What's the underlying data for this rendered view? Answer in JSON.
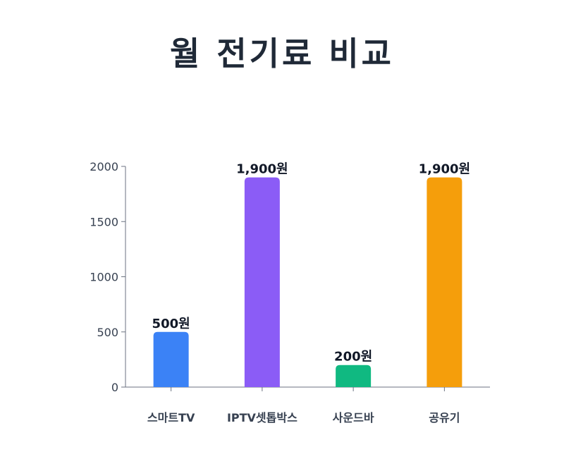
{
  "chart_data": {
    "type": "bar",
    "title": "월 전기료 비교",
    "categories": [
      "스마트TV",
      "IPTV셋톱박스",
      "사운드바",
      "공유기"
    ],
    "values": [
      500,
      1900,
      200,
      1900
    ],
    "data_labels": [
      "500원",
      "1,900원",
      "200원",
      "1,900원"
    ],
    "colors": [
      "#3b82f6",
      "#8b5cf6",
      "#10b981",
      "#f59e0b"
    ],
    "yticks": [
      "0",
      "500",
      "1000",
      "1500",
      "2000"
    ],
    "ylim": [
      0,
      2000
    ],
    "grid": false,
    "legend": "none"
  }
}
